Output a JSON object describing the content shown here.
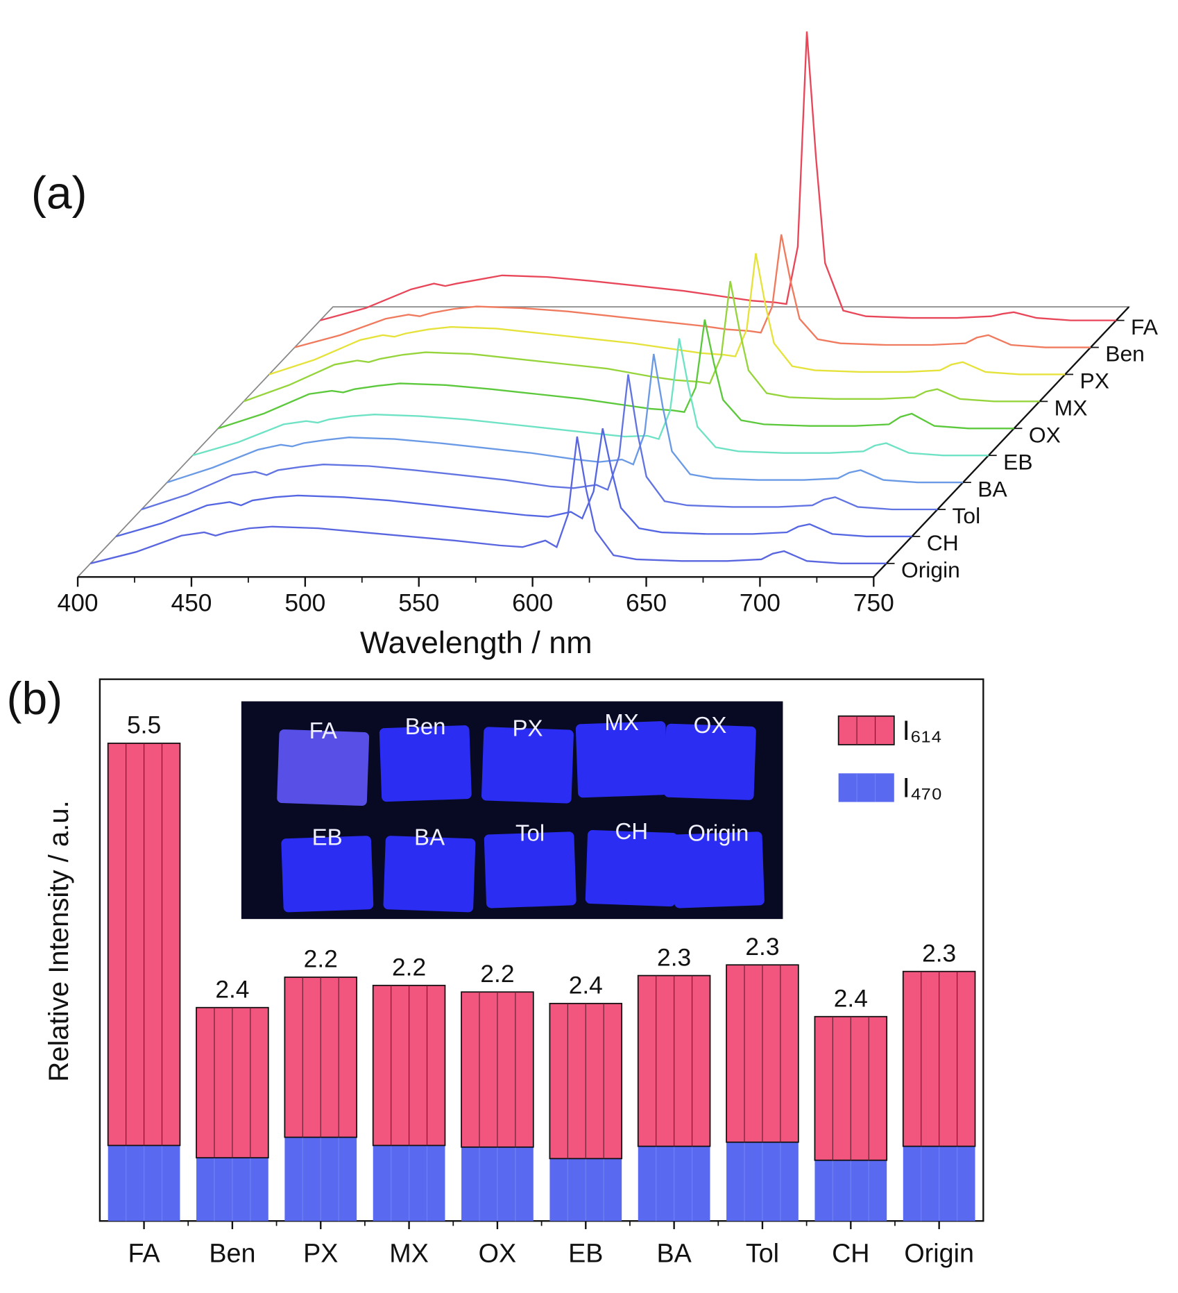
{
  "chart_data": [
    {
      "type": "waterfall",
      "panel_label": "(a)",
      "xlabel": "Wavelength / nm",
      "xlim": [
        400,
        750
      ],
      "xticks": [
        400,
        450,
        500,
        550,
        600,
        650,
        700,
        750
      ],
      "x": [
        400,
        420,
        440,
        450,
        455,
        460,
        470,
        480,
        500,
        520,
        540,
        560,
        580,
        590,
        600,
        605,
        610,
        614,
        618,
        622,
        630,
        640,
        660,
        680,
        695,
        700,
        705,
        715,
        730,
        750
      ],
      "series": [
        {
          "name": "FA",
          "color": "#e8475a",
          "values": [
            0,
            15,
            38,
            45,
            42,
            45,
            50,
            55,
            53,
            48,
            42,
            36,
            28,
            24,
            22,
            20,
            90,
            353,
            200,
            70,
            12,
            5,
            3,
            3,
            5,
            8,
            10,
            3,
            0,
            0
          ]
        },
        {
          "name": "Ben",
          "color": "#f07a5e",
          "values": [
            0,
            15,
            35,
            40,
            38,
            42,
            47,
            50,
            48,
            44,
            38,
            32,
            26,
            22,
            20,
            18,
            50,
            138,
            82,
            35,
            10,
            5,
            3,
            3,
            5,
            12,
            15,
            3,
            0,
            0
          ]
        },
        {
          "name": "PX",
          "color": "#e6e23c",
          "values": [
            0,
            18,
            42,
            48,
            46,
            50,
            55,
            58,
            56,
            50,
            44,
            38,
            30,
            26,
            24,
            22,
            55,
            148,
            88,
            38,
            10,
            5,
            3,
            3,
            5,
            12,
            15,
            3,
            0,
            0
          ]
        },
        {
          "name": "MX",
          "color": "#96d43c",
          "values": [
            0,
            20,
            45,
            50,
            48,
            52,
            57,
            60,
            58,
            52,
            46,
            40,
            30,
            26,
            24,
            22,
            55,
            147,
            88,
            38,
            10,
            5,
            3,
            3,
            5,
            12,
            15,
            3,
            0,
            0
          ]
        },
        {
          "name": "OX",
          "color": "#5cc83c",
          "values": [
            0,
            18,
            42,
            46,
            44,
            48,
            52,
            55,
            53,
            48,
            42,
            36,
            28,
            24,
            22,
            20,
            50,
            133,
            80,
            35,
            10,
            5,
            3,
            3,
            5,
            14,
            18,
            3,
            0,
            0
          ]
        },
        {
          "name": "EB",
          "color": "#6ee2c4",
          "values": [
            0,
            16,
            38,
            42,
            40,
            44,
            48,
            50,
            48,
            44,
            38,
            32,
            26,
            23,
            24,
            20,
            55,
            143,
            85,
            35,
            10,
            5,
            3,
            3,
            5,
            12,
            15,
            3,
            0,
            0
          ]
        },
        {
          "name": "BA",
          "color": "#6a9ae6",
          "values": [
            0,
            18,
            40,
            46,
            44,
            48,
            52,
            55,
            53,
            48,
            42,
            36,
            28,
            25,
            28,
            22,
            60,
            157,
            92,
            38,
            10,
            5,
            3,
            3,
            5,
            12,
            15,
            3,
            0,
            0
          ]
        },
        {
          "name": "Tol",
          "color": "#6274e2",
          "values": [
            0,
            18,
            42,
            46,
            42,
            48,
            52,
            55,
            53,
            48,
            42,
            36,
            28,
            26,
            30,
            24,
            65,
            165,
            95,
            40,
            10,
            5,
            3,
            3,
            5,
            12,
            15,
            3,
            0,
            0
          ]
        },
        {
          "name": "CH",
          "color": "#5466e2",
          "values": [
            0,
            16,
            38,
            42,
            38,
            44,
            48,
            50,
            48,
            44,
            38,
            32,
            26,
            24,
            30,
            22,
            55,
            132,
            80,
            35,
            10,
            5,
            3,
            3,
            5,
            12,
            15,
            3,
            0,
            0
          ]
        },
        {
          "name": "Origin",
          "color": "#5a66e0",
          "values": [
            0,
            14,
            34,
            38,
            34,
            38,
            43,
            45,
            43,
            38,
            33,
            28,
            22,
            20,
            28,
            20,
            60,
            155,
            90,
            40,
            10,
            5,
            3,
            3,
            5,
            12,
            15,
            3,
            0,
            0
          ]
        }
      ]
    },
    {
      "type": "bar",
      "stacked": true,
      "panel_label": "(b)",
      "ylabel": "Relative Intensity / a.u.",
      "ylim": [
        0,
        660
      ],
      "categories": [
        "FA",
        "Ben",
        "PX",
        "MX",
        "OX",
        "EB",
        "BA",
        "Tol",
        "CH",
        "Origin"
      ],
      "series": [
        {
          "name": "I₄₇₀",
          "color": "#5a6af0",
          "values": [
            92,
            77,
            102,
            92,
            90,
            76,
            91,
            96,
            74,
            91
          ]
        },
        {
          "name": "I₆₁₄",
          "color": "#f2557e",
          "values": [
            490,
            183,
            195,
            195,
            189,
            189,
            208,
            216,
            175,
            213
          ]
        }
      ],
      "legend_order": [
        1,
        0
      ],
      "ratios": [
        5.5,
        2.4,
        2.2,
        2.2,
        2.2,
        2.4,
        2.3,
        2.3,
        2.4,
        2.3
      ],
      "inset_labels": [
        "FA",
        "Ben",
        "PX",
        "MX",
        "OX",
        "EB",
        "BA",
        "Tol",
        "CH",
        "Origin"
      ]
    }
  ]
}
